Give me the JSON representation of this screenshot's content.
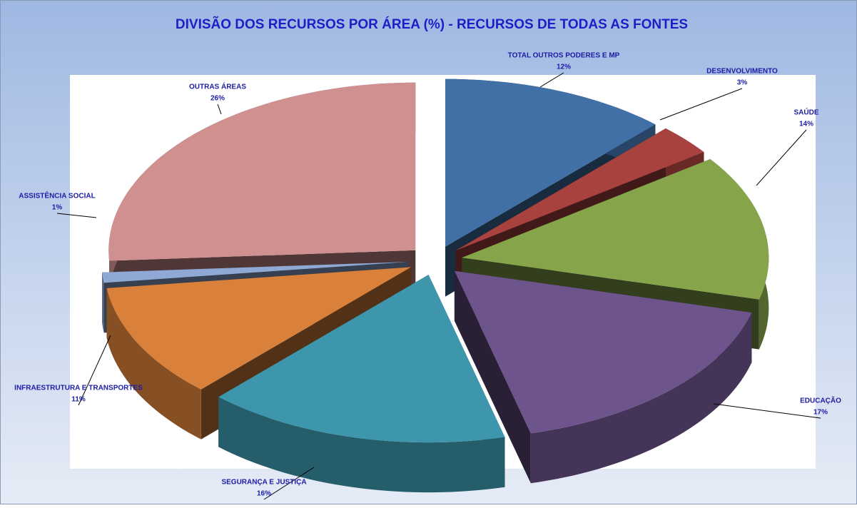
{
  "chart_data": {
    "type": "pie",
    "title": "DIVISÃO DOS RECURSOS POR ÁREA (%) - RECURSOS DE TODAS AS FONTES",
    "categories": [
      "TOTAL OUTROS PODERES E MP",
      "DESENVOLVIMENTO",
      "SAÚDE",
      "EDUCAÇÃO",
      "SEGURANÇA E JUSTIÇA",
      "INFRAESTRUTURA  E TRANSPORTES",
      "ASSISTÊNCIA SOCIAL",
      "OUTRAS ÁREAS"
    ],
    "values": [
      12,
      3,
      14,
      17,
      16,
      11,
      1,
      26
    ],
    "value_labels": [
      "12%",
      "3%",
      "14%",
      "17%",
      "16%",
      "11%",
      "1%",
      "26%"
    ],
    "colors": [
      "#4070a6",
      "#a8423f",
      "#86a44a",
      "#6e548d",
      "#3d96ab",
      "#d9803a",
      "#8fa8d4",
      "#d09090"
    ]
  }
}
